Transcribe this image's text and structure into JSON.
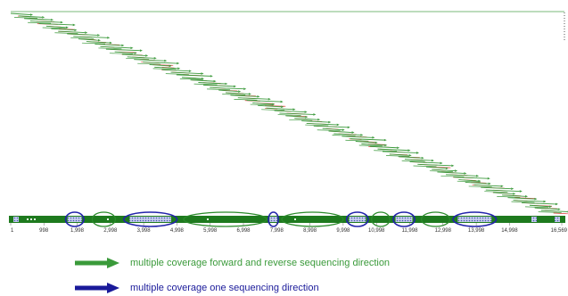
{
  "colors": {
    "forward": "#3d9a3d",
    "reverse": "#e03a3a",
    "bar": "#1e7a1e",
    "multi_ellipse": "#2a8a2a",
    "single_ellipse": "#2222aa",
    "single_fill": "#9aa6d8",
    "legend_green": "#3a9a3a",
    "legend_blue": "#1a1a9a",
    "frame": "#7ab87a"
  },
  "chart_data": {
    "type": "diagram",
    "genome_length": 16569,
    "ticks": [
      "1",
      "998",
      "1,998",
      "2,998",
      "3,998",
      "4,998",
      "5,998",
      "6,998",
      "7,998",
      "8,998",
      "9,998",
      "10,998",
      "11,998",
      "12,998",
      "13,998",
      "14,998",
      "16,569"
    ],
    "read_count": 78,
    "regions": [
      {
        "type": "single",
        "start": 1650,
        "end": 2200
      },
      {
        "type": "multi",
        "start": 2450,
        "end": 3150
      },
      {
        "type": "single",
        "start": 3400,
        "end": 5000
      },
      {
        "type": "multi",
        "start": 5200,
        "end": 7700
      },
      {
        "type": "single",
        "start": 7750,
        "end": 8050
      },
      {
        "type": "multi",
        "start": 8150,
        "end": 10000
      },
      {
        "type": "single",
        "start": 10100,
        "end": 10750
      },
      {
        "type": "multi",
        "start": 10850,
        "end": 11400
      },
      {
        "type": "single",
        "start": 11500,
        "end": 12150
      },
      {
        "type": "multi",
        "start": 12350,
        "end": 13200
      },
      {
        "type": "single",
        "start": 13300,
        "end": 14600
      }
    ]
  },
  "legend": {
    "items": [
      {
        "label": "multiple coverage forward and reverse sequencing direction",
        "color": "#3a9a3a"
      },
      {
        "label": "multiple coverage one sequencing direction",
        "color": "#1a1a9a"
      }
    ]
  }
}
